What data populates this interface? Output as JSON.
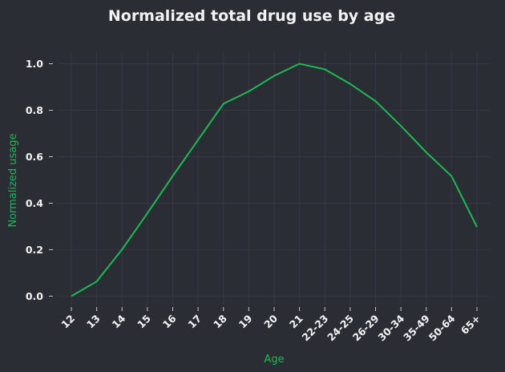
{
  "chart_data": {
    "type": "line",
    "title": "Normalized total drug use by age",
    "xlabel": "Age",
    "ylabel": "Normalized usage",
    "categories": [
      "12",
      "13",
      "14",
      "15",
      "16",
      "17",
      "18",
      "19",
      "20",
      "21",
      "22-23",
      "24-25",
      "26-29",
      "30-34",
      "35-49",
      "50-64",
      "65+"
    ],
    "series": [
      {
        "values": [
          0.0,
          0.063,
          0.201,
          0.357,
          0.517,
          0.672,
          0.828,
          0.881,
          0.948,
          1.0,
          0.976,
          0.913,
          0.839,
          0.733,
          0.619,
          0.516,
          0.298
        ]
      }
    ],
    "yticks": [
      "0.0",
      "0.2",
      "0.4",
      "0.6",
      "0.8",
      "1.0"
    ],
    "ylim": [
      -0.04,
      1.05
    ],
    "grid": true,
    "colors": {
      "line": "#1db954",
      "axis_title": "#1db954",
      "background": "#2b2d35",
      "grid": "#353842",
      "text": "#f2f2f2"
    }
  }
}
